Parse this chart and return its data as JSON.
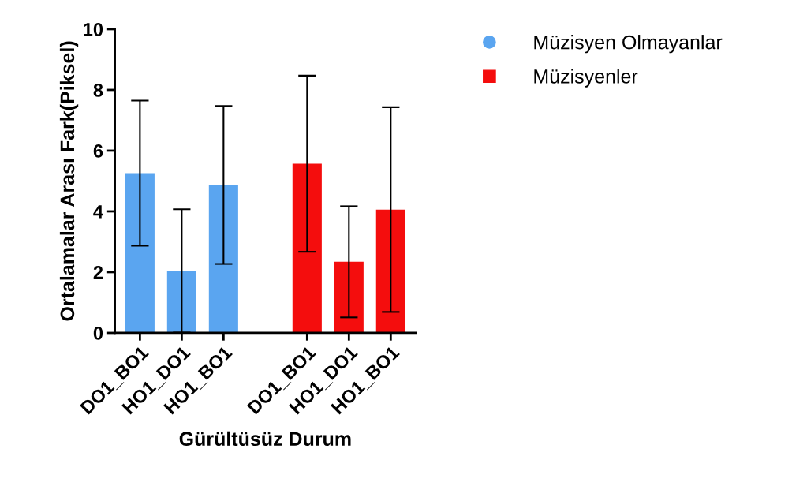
{
  "chart_data": {
    "type": "bar",
    "xlabel": "Gürültüsüz Durum",
    "ylabel": "Ortalamalar Arası Fark(Piksel)",
    "categories": [
      "DO1_BO1",
      "HO1_DO1",
      "HO1_BO1",
      null,
      "DO1_BO1",
      "HO1_DO1",
      "HO1_BO1"
    ],
    "series": [
      {
        "name": "Müzisyen Olmayanlar",
        "color": "#5aa5f0",
        "marker": "circle",
        "values": [
          5.26,
          2.04,
          4.87,
          null,
          null,
          null,
          null
        ],
        "errors": [
          2.39,
          2.03,
          2.6,
          null,
          null,
          null,
          null
        ]
      },
      {
        "name": "Müzisyenler",
        "color": "#f40d0d",
        "marker": "square",
        "values": [
          null,
          null,
          null,
          null,
          5.57,
          2.34,
          4.06
        ],
        "errors": [
          null,
          null,
          null,
          null,
          2.9,
          1.83,
          3.37
        ]
      }
    ],
    "ylim": [
      0,
      10
    ],
    "yticks": [
      0,
      2,
      4,
      6,
      8,
      10
    ],
    "grid": false,
    "legend": "top right"
  }
}
